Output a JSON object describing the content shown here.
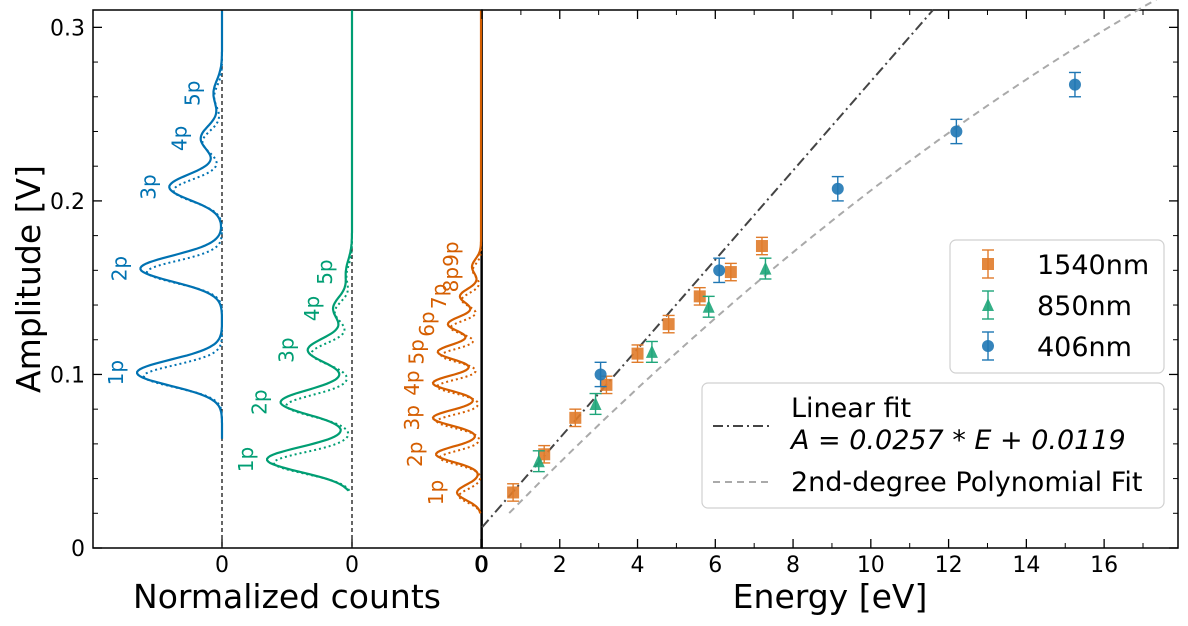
{
  "chart_data": {
    "y_axis": {
      "label": "Amplitude [V]",
      "ylim": [
        0,
        0.31
      ],
      "ticks": [
        0,
        0.1,
        0.2,
        0.3
      ],
      "tick_labels": [
        "0",
        "0.1",
        "0.2",
        "0.3"
      ]
    },
    "left_panel": {
      "type": "line",
      "xlabel": "Normalized counts",
      "zero_labels": [
        "0",
        "0",
        "0"
      ],
      "series": [
        {
          "name": "406nm spectrum",
          "color": "#0072b2",
          "min_amplitude": 0.063,
          "peaks": [
            {
              "label": "1p",
              "amplitude": 0.101,
              "height": 1.0
            },
            {
              "label": "2p",
              "amplitude": 0.161,
              "height": 0.96
            },
            {
              "label": "3p",
              "amplitude": 0.208,
              "height": 0.62
            },
            {
              "label": "4p",
              "amplitude": 0.236,
              "height": 0.25
            },
            {
              "label": "5p",
              "amplitude": 0.262,
              "height": 0.1
            }
          ]
        },
        {
          "name": "850nm spectrum",
          "color": "#009e73",
          "min_amplitude": 0.033,
          "peaks": [
            {
              "label": "1p",
              "amplitude": 0.051,
              "height": 1.0
            },
            {
              "label": "2p",
              "amplitude": 0.084,
              "height": 0.84
            },
            {
              "label": "3p",
              "amplitude": 0.114,
              "height": 0.52
            },
            {
              "label": "4p",
              "amplitude": 0.138,
              "height": 0.22
            },
            {
              "label": "5p",
              "amplitude": 0.159,
              "height": 0.07
            }
          ]
        },
        {
          "name": "1540nm spectrum",
          "color": "#d55e00",
          "min_amplitude": 0.02,
          "peaks": [
            {
              "label": "1p",
              "amplitude": 0.032,
              "height": 0.4
            },
            {
              "label": "2p",
              "amplitude": 0.054,
              "height": 0.75
            },
            {
              "label": "3p",
              "amplitude": 0.075,
              "height": 0.8
            },
            {
              "label": "4p",
              "amplitude": 0.095,
              "height": 0.8
            },
            {
              "label": "5p",
              "amplitude": 0.113,
              "height": 0.72
            },
            {
              "label": "6p",
              "amplitude": 0.129,
              "height": 0.55
            },
            {
              "label": "7p",
              "amplitude": 0.145,
              "height": 0.35
            },
            {
              "label": "8p9p",
              "amplitude": 0.162,
              "height": 0.15
            }
          ]
        }
      ]
    },
    "right_panel": {
      "type": "scatter",
      "xlabel": "Energy [eV]",
      "xlim": [
        0,
        17.9
      ],
      "xticks": [
        0,
        2,
        4,
        6,
        8,
        10,
        12,
        14,
        16
      ],
      "xtick_labels": [
        "0",
        "2",
        "4",
        "6",
        "8",
        "10",
        "12",
        "14",
        "16"
      ],
      "series": [
        {
          "name": "1540nm",
          "marker": "square",
          "color": "#e07b2a",
          "points": [
            [
              0.8,
              0.032
            ],
            [
              1.6,
              0.054
            ],
            [
              2.4,
              0.075
            ],
            [
              3.2,
              0.094
            ],
            [
              4.0,
              0.112
            ],
            [
              4.8,
              0.129
            ],
            [
              5.6,
              0.145
            ],
            [
              6.4,
              0.159
            ],
            [
              7.2,
              0.174
            ]
          ],
          "error": 0.005
        },
        {
          "name": "850nm",
          "marker": "triangle",
          "color": "#1fa67a",
          "points": [
            [
              1.46,
              0.05
            ],
            [
              2.92,
              0.083
            ],
            [
              4.37,
              0.113
            ],
            [
              5.83,
              0.139
            ],
            [
              7.29,
              0.161
            ]
          ],
          "error": 0.006
        },
        {
          "name": "406nm",
          "marker": "circle",
          "color": "#1f77b4",
          "points": [
            [
              3.05,
              0.1
            ],
            [
              6.1,
              0.16
            ],
            [
              9.15,
              0.207
            ],
            [
              12.2,
              0.24
            ],
            [
              15.25,
              0.267
            ]
          ],
          "error": 0.007
        }
      ],
      "fits": [
        {
          "name": "Linear fit",
          "formula": "A = 0.0257 * E + 0.0119",
          "slope": 0.0257,
          "intercept": 0.0119,
          "style": "dashdot",
          "color": "#444444"
        },
        {
          "name": "2nd-degree Polynomial Fit",
          "coeffs": [
            -0.0003,
            0.0232,
            0.004
          ],
          "style": "dashed",
          "color": "#aaaaaa"
        }
      ],
      "legend_top": {
        "position": "middle-right",
        "entries": [
          "1540nm",
          "850nm",
          "406nm"
        ]
      },
      "legend_bottom": {
        "position": "lower-right",
        "entries": [
          {
            "line1": "Linear fit",
            "line2": "A = 0.0257 * E + 0.0119"
          },
          {
            "line1": "2nd-degree Polynomial Fit"
          }
        ]
      }
    }
  }
}
